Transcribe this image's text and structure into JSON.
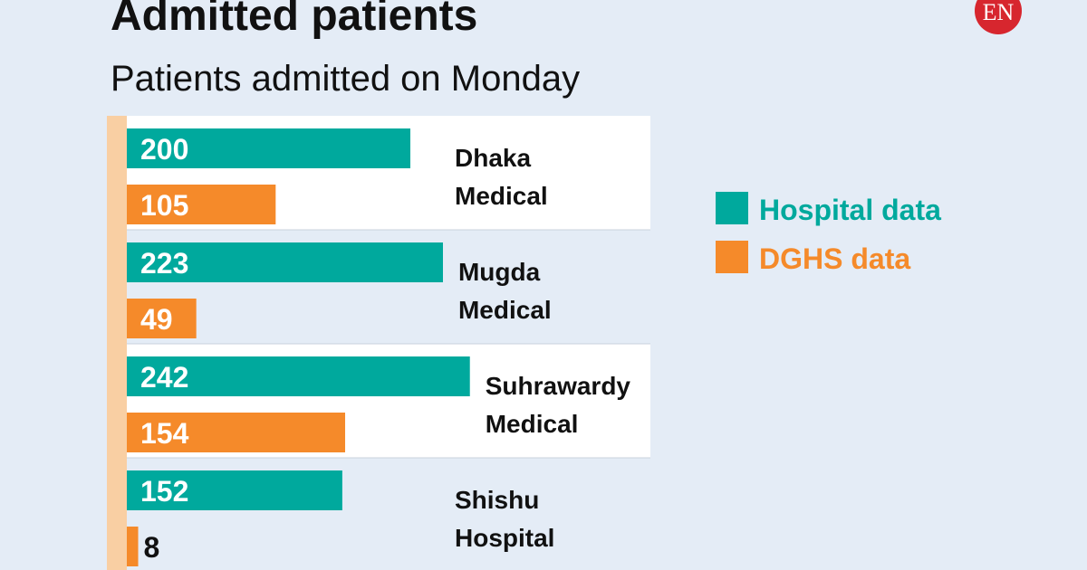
{
  "chart_data": {
    "type": "bar",
    "orientation": "horizontal",
    "title": "Admitted patients",
    "subtitle": "Patients admitted on Monday",
    "categories": [
      "Dhaka Medical",
      "Mugda Medical",
      "Suhrawardy Medical",
      "Shishu Hospital"
    ],
    "series": [
      {
        "name": "Hospital data",
        "color": "#00a99d",
        "values": [
          200,
          223,
          242,
          152
        ]
      },
      {
        "name": "DGHS data",
        "color": "#f58a2a",
        "values": [
          105,
          49,
          154,
          8
        ]
      }
    ],
    "legend": "right"
  },
  "logo": "EN"
}
